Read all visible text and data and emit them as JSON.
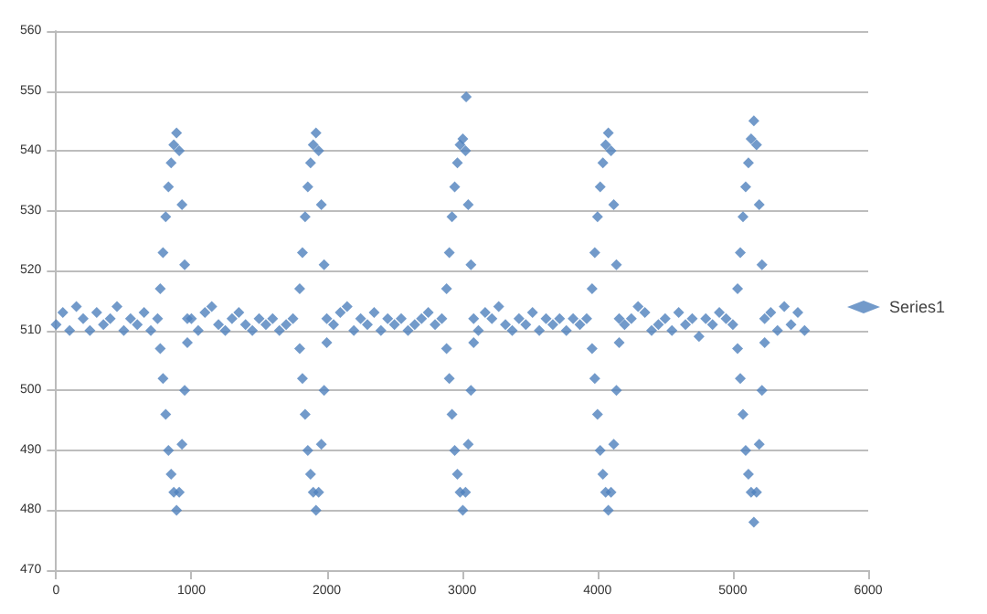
{
  "chart_data": {
    "type": "scatter",
    "xlim": [
      0,
      6000
    ],
    "xticks": [
      0,
      1000,
      2000,
      3000,
      4000,
      5000,
      6000
    ],
    "ylim": [
      470,
      560
    ],
    "yticks": [
      470,
      480,
      490,
      500,
      510,
      520,
      530,
      540,
      550,
      560
    ],
    "grid": "y",
    "legend": "right",
    "marker": "diamond",
    "series": [
      {
        "name": "Series1",
        "color": "#4f81bd",
        "x": [
          0,
          50,
          100,
          150,
          200,
          250,
          300,
          350,
          400,
          450,
          500,
          550,
          600,
          650,
          700,
          750,
          770,
          770,
          790,
          790,
          810,
          810,
          830,
          830,
          850,
          850,
          870,
          870,
          890,
          890,
          910,
          910,
          930,
          930,
          950,
          950,
          970,
          970,
          1000,
          1050,
          1100,
          1150,
          1200,
          1250,
          1300,
          1350,
          1400,
          1450,
          1500,
          1550,
          1600,
          1650,
          1700,
          1750,
          1800,
          1800,
          1820,
          1820,
          1840,
          1840,
          1860,
          1860,
          1880,
          1880,
          1900,
          1900,
          1920,
          1920,
          1940,
          1940,
          1960,
          1960,
          1980,
          1980,
          2000,
          2000,
          2050,
          2100,
          2150,
          2200,
          2250,
          2300,
          2350,
          2400,
          2450,
          2500,
          2550,
          2600,
          2650,
          2700,
          2750,
          2800,
          2850,
          2885,
          2885,
          2905,
          2905,
          2925,
          2925,
          2945,
          2945,
          2965,
          2965,
          2985,
          2985,
          3005,
          3005,
          3025,
          3025,
          3030,
          3045,
          3045,
          3065,
          3065,
          3085,
          3085,
          3120,
          3170,
          3220,
          3270,
          3320,
          3370,
          3420,
          3470,
          3520,
          3570,
          3620,
          3670,
          3720,
          3770,
          3820,
          3870,
          3920,
          3960,
          3960,
          3980,
          3980,
          4000,
          4000,
          4020,
          4020,
          4040,
          4040,
          4060,
          4060,
          4080,
          4080,
          4100,
          4100,
          4120,
          4120,
          4140,
          4140,
          4160,
          4160,
          4200,
          4250,
          4300,
          4350,
          4400,
          4450,
          4500,
          4550,
          4600,
          4650,
          4700,
          4750,
          4800,
          4850,
          4900,
          4950,
          5000,
          5035,
          5035,
          5055,
          5055,
          5075,
          5075,
          5095,
          5095,
          5115,
          5115,
          5135,
          5135,
          5155,
          5155,
          5175,
          5175,
          5195,
          5195,
          5215,
          5215,
          5235,
          5235,
          5280,
          5330,
          5380,
          5430,
          5480,
          5530
        ],
        "values": [
          511,
          513,
          510,
          514,
          512,
          510,
          513,
          511,
          512,
          514,
          510,
          512,
          511,
          513,
          510,
          512,
          517,
          507,
          523,
          502,
          529,
          496,
          534,
          490,
          538,
          486,
          541,
          483,
          543,
          480,
          540,
          483,
          531,
          491,
          521,
          500,
          512,
          508,
          512,
          510,
          513,
          514,
          511,
          510,
          512,
          513,
          511,
          510,
          512,
          511,
          512,
          510,
          511,
          512,
          517,
          507,
          523,
          502,
          529,
          496,
          534,
          490,
          538,
          486,
          541,
          483,
          543,
          480,
          540,
          483,
          531,
          491,
          521,
          500,
          512,
          508,
          511,
          513,
          514,
          510,
          512,
          511,
          513,
          510,
          512,
          511,
          512,
          510,
          511,
          512,
          513,
          511,
          512,
          517,
          507,
          523,
          502,
          529,
          496,
          534,
          490,
          538,
          486,
          541,
          483,
          542,
          480,
          540,
          483,
          549,
          531,
          491,
          521,
          500,
          512,
          508,
          510,
          513,
          512,
          514,
          511,
          510,
          512,
          511,
          513,
          510,
          512,
          511,
          512,
          510,
          512,
          511,
          512,
          517,
          507,
          523,
          502,
          529,
          496,
          534,
          490,
          538,
          486,
          541,
          483,
          543,
          480,
          540,
          483,
          531,
          491,
          521,
          500,
          512,
          508,
          511,
          512,
          514,
          513,
          510,
          511,
          512,
          510,
          513,
          511,
          512,
          509,
          512,
          511,
          513,
          512,
          511,
          517,
          507,
          523,
          502,
          529,
          496,
          534,
          490,
          538,
          486,
          542,
          483,
          545,
          478,
          541,
          483,
          531,
          491,
          521,
          500,
          512,
          508,
          513,
          510,
          514,
          511,
          513,
          510
        ]
      }
    ]
  }
}
